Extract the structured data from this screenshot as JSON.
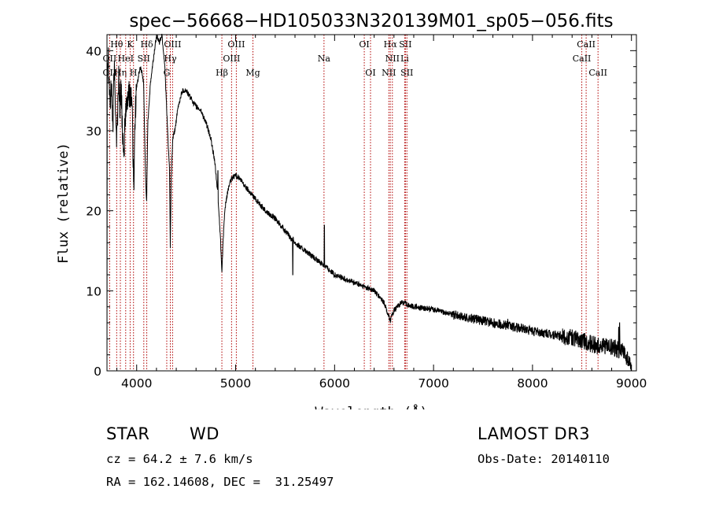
{
  "chart_data": {
    "type": "line",
    "title": "spec−56668−HD105033N320139M01_sp05−056.fits",
    "xlabel": "Wavelength (Å)",
    "ylabel": "Flux (relative)",
    "xlim": [
      3700,
      9050
    ],
    "ylim": [
      0,
      42
    ],
    "x_ticks": [
      4000,
      5000,
      6000,
      7000,
      8000,
      9000
    ],
    "x_tick_labels": [
      "4000",
      "5000",
      "6000",
      "7000",
      "8000",
      "9000"
    ],
    "y_ticks": [
      0,
      10,
      20,
      30,
      40
    ],
    "y_tick_labels": [
      "0",
      "10",
      "20",
      "30",
      "40"
    ],
    "spectrum_anchors": [
      [
        3700,
        0
      ],
      [
        3702,
        38
      ],
      [
        3712,
        40
      ],
      [
        3722,
        36
      ],
      [
        3735,
        33
      ],
      [
        3745,
        36
      ],
      [
        3760,
        30
      ],
      [
        3772,
        38
      ],
      [
        3785,
        34
      ],
      [
        3797,
        29
      ],
      [
        3805,
        31
      ],
      [
        3818,
        37
      ],
      [
        3830,
        33
      ],
      [
        3845,
        35
      ],
      [
        3870,
        25
      ],
      [
        3880,
        31
      ],
      [
        3905,
        34
      ],
      [
        3940,
        35
      ],
      [
        3955,
        33
      ],
      [
        3970,
        22
      ],
      [
        3980,
        30
      ],
      [
        3995,
        35
      ],
      [
        4020,
        37
      ],
      [
        4040,
        38
      ],
      [
        4070,
        36
      ],
      [
        4090,
        24
      ],
      [
        4101,
        21
      ],
      [
        4112,
        31
      ],
      [
        4140,
        36
      ],
      [
        4170,
        39
      ],
      [
        4200,
        42
      ],
      [
        4230,
        41
      ],
      [
        4255,
        42
      ],
      [
        4285,
        38
      ],
      [
        4305,
        32
      ],
      [
        4320,
        28
      ],
      [
        4332,
        25
      ],
      [
        4340,
        15
      ],
      [
        4348,
        24
      ],
      [
        4365,
        29
      ],
      [
        4385,
        30
      ],
      [
        4420,
        33
      ],
      [
        4460,
        35
      ],
      [
        4500,
        35
      ],
      [
        4550,
        34
      ],
      [
        4600,
        33
      ],
      [
        4650,
        32.5
      ],
      [
        4700,
        31
      ],
      [
        4750,
        29
      ],
      [
        4790,
        26
      ],
      [
        4820,
        22
      ],
      [
        4845,
        17
      ],
      [
        4861,
        12.5
      ],
      [
        4880,
        18
      ],
      [
        4900,
        21
      ],
      [
        4930,
        23
      ],
      [
        4960,
        24
      ],
      [
        5000,
        24.5
      ],
      [
        5040,
        24
      ],
      [
        5100,
        23
      ],
      [
        5200,
        21.5
      ],
      [
        5300,
        20
      ],
      [
        5400,
        19
      ],
      [
        5500,
        17.5
      ],
      [
        5560,
        16.5
      ],
      [
        5580,
        16.5
      ],
      [
        5600,
        16
      ],
      [
        5700,
        15
      ],
      [
        5800,
        14
      ],
      [
        5895,
        13.2
      ],
      [
        5950,
        12.6
      ],
      [
        6000,
        12
      ],
      [
        6100,
        11.5
      ],
      [
        6200,
        11
      ],
      [
        6300,
        10.5
      ],
      [
        6400,
        10
      ],
      [
        6500,
        8.5
      ],
      [
        6563,
        6.3
      ],
      [
        6600,
        7.5
      ],
      [
        6680,
        8.6
      ],
      [
        6750,
        8.2
      ],
      [
        6850,
        7.9
      ],
      [
        7000,
        7.7
      ],
      [
        7200,
        7
      ],
      [
        7400,
        6.5
      ],
      [
        7600,
        6
      ],
      [
        7800,
        5.5
      ],
      [
        8000,
        5
      ],
      [
        8200,
        4.5
      ],
      [
        8350,
        4.2
      ],
      [
        8450,
        4
      ],
      [
        8550,
        3.5
      ],
      [
        8700,
        3
      ],
      [
        8800,
        3
      ],
      [
        8900,
        2.5
      ],
      [
        8960,
        1.5
      ],
      [
        8990,
        0.5
      ],
      [
        9000,
        0
      ]
    ],
    "spikes": [
      [
        5577,
        12
      ],
      [
        5896,
        18.2
      ],
      [
        4820,
        25
      ],
      [
        4780,
        26.5
      ],
      [
        8880,
        6
      ],
      [
        8870,
        5.5
      ],
      [
        7750,
        6.5
      ]
    ],
    "line_markers": [
      {
        "label": "Hθ",
        "wl": 3798,
        "row": 0
      },
      {
        "label": "OII",
        "wl": 3727,
        "row": 1
      },
      {
        "label": "OII",
        "wl": 3727,
        "row": 2
      },
      {
        "label": "Hη",
        "wl": 3835,
        "row": 2
      },
      {
        "label": "K",
        "wl": 3934,
        "row": 0
      },
      {
        "label": "HeI",
        "wl": 3889,
        "row": 1
      },
      {
        "label": "SII",
        "wl": 4072,
        "row": 1
      },
      {
        "label": "H",
        "wl": 3968,
        "row": 2
      },
      {
        "label": "Hδ",
        "wl": 4102,
        "row": 0
      },
      {
        "label": "OIII",
        "wl": 4363,
        "row": 0
      },
      {
        "label": "Hγ",
        "wl": 4340,
        "row": 1
      },
      {
        "label": "G",
        "wl": 4304,
        "row": 2
      },
      {
        "label": "OIII",
        "wl": 5007,
        "row": 0
      },
      {
        "label": "OIII",
        "wl": 4959,
        "row": 1
      },
      {
        "label": "Hβ",
        "wl": 4861,
        "row": 2
      },
      {
        "label": "Mg",
        "wl": 5175,
        "row": 2
      },
      {
        "label": "Na",
        "wl": 5893,
        "row": 1
      },
      {
        "label": "OI",
        "wl": 6300,
        "row": 0
      },
      {
        "label": "OI",
        "wl": 6363,
        "row": 2
      },
      {
        "label": "Hα",
        "wl": 6563,
        "row": 0
      },
      {
        "label": "SII",
        "wl": 6716,
        "row": 0
      },
      {
        "label": "NII",
        "wl": 6584,
        "row": 1
      },
      {
        "label": "Li",
        "wl": 6708,
        "row": 1
      },
      {
        "label": "NII",
        "wl": 6548,
        "row": 2
      },
      {
        "label": "SII",
        "wl": 6731,
        "row": 2
      },
      {
        "label": "CaII",
        "wl": 8542,
        "row": 0
      },
      {
        "label": "CaII",
        "wl": 8498,
        "row": 1
      },
      {
        "label": "CaII",
        "wl": 8662,
        "row": 2
      }
    ]
  },
  "info": {
    "object_class": "STAR",
    "subclass": "WD",
    "survey": "LAMOST DR3",
    "redshift": "cz = 64.2 ± 7.6 km/s",
    "obs_date": "Obs-Date: 20140110",
    "coords": "RA = 162.14608, DEC =  31.25497"
  }
}
